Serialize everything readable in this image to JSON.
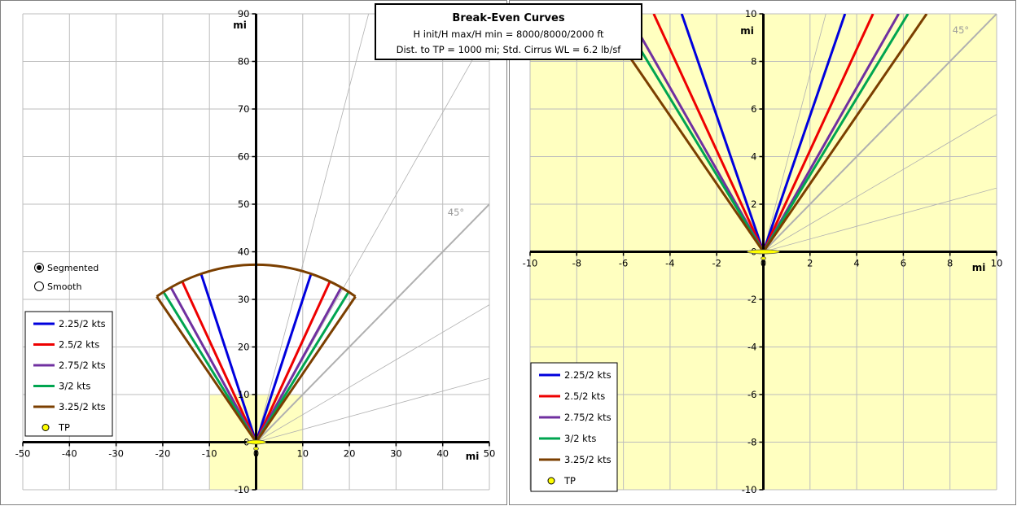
{
  "title": {
    "line1": "Break-Even Curves",
    "line2": "H init/H max/H min = 8000/8000/2000 ft",
    "line3": "Dist. to TP = 1000 mi; Std. Cirrus WL = 6.2 lb/sf"
  },
  "radio": {
    "options": [
      {
        "label": "Segmented",
        "selected": true
      },
      {
        "label": "Smooth",
        "selected": false
      }
    ]
  },
  "colors": {
    "s1": "#0000dd",
    "s2": "#ee0000",
    "s3": "#7030a0",
    "s4": "#00a550",
    "s5": "#7b3f00",
    "yellow_zone": "#ffffc0",
    "tp": "#ffff00",
    "guide": "#b0b0b0"
  },
  "legend": {
    "tp_label": "TP"
  },
  "chart_data": [
    {
      "type": "line",
      "xlabel": "mi",
      "ylabel": "mi",
      "xlim": [
        -50,
        50
      ],
      "ylim": [
        -10,
        90
      ],
      "xticks": [
        -50,
        -40,
        -30,
        -20,
        -10,
        0,
        10,
        20,
        30,
        40,
        50
      ],
      "yticks": [
        -10,
        0,
        10,
        20,
        30,
        40,
        50,
        60,
        70,
        80,
        90
      ],
      "grid": true,
      "legend_position": "bottom-left",
      "highlight_box": {
        "x": [
          -10,
          10
        ],
        "y": [
          -10,
          10
        ]
      },
      "guide_angle_label": "45°",
      "guide_lines_deg": [
        45,
        15,
        30,
        60,
        75
      ],
      "series": [
        {
          "name": "2.25/2 kts",
          "color_key": "s1",
          "points": [
            [
              -11.8,
              35.4
            ],
            [
              0,
              0
            ],
            [
              11.8,
              35.4
            ]
          ]
        },
        {
          "name": "2.5/2 kts",
          "color_key": "s2",
          "points": [
            [
              -15.8,
              33.7
            ],
            [
              0,
              0
            ],
            [
              15.8,
              33.7
            ]
          ]
        },
        {
          "name": "2.75/2 kts",
          "color_key": "s3",
          "points": [
            [
              -18.2,
              32.4
            ],
            [
              0,
              0
            ],
            [
              18.2,
              32.4
            ]
          ]
        },
        {
          "name": "3/2 kts",
          "color_key": "s4",
          "points": [
            [
              -19.8,
              31.5
            ],
            [
              0,
              0
            ],
            [
              19.8,
              31.5
            ]
          ]
        },
        {
          "name": "3.25/2 kts",
          "color_key": "s5",
          "points": [
            [
              -21.3,
              30.6
            ],
            [
              0,
              0
            ],
            [
              21.3,
              30.6
            ]
          ],
          "arc": {
            "radius": 37.3,
            "from": [
              -21.3,
              30.6
            ],
            "to": [
              21.3,
              30.6
            ]
          }
        }
      ],
      "tp": {
        "label": "TP",
        "x": 0,
        "y": 0
      }
    },
    {
      "type": "line",
      "xlabel": "mi",
      "ylabel": "mi",
      "xlim": [
        -10,
        10
      ],
      "ylim": [
        -10,
        10
      ],
      "xticks": [
        -10,
        -8,
        -6,
        -4,
        -2,
        0,
        2,
        4,
        6,
        8,
        10
      ],
      "yticks": [
        -10,
        -8,
        -6,
        -4,
        -2,
        0,
        2,
        4,
        6,
        8,
        10
      ],
      "grid": true,
      "legend_position": "bottom-left",
      "guide_angle_label": "45°",
      "guide_lines_deg": [
        45,
        15,
        30,
        60,
        75
      ],
      "series": [
        {
          "name": "2.25/2 kts",
          "color_key": "s1",
          "points": [
            [
              -3.5,
              10
            ],
            [
              0,
              0
            ],
            [
              3.5,
              10
            ]
          ]
        },
        {
          "name": "2.5/2 kts",
          "color_key": "s2",
          "points": [
            [
              -4.7,
              10
            ],
            [
              0,
              0
            ],
            [
              4.7,
              10
            ]
          ]
        },
        {
          "name": "2.75/2 kts",
          "color_key": "s3",
          "points": [
            [
              -5.8,
              10
            ],
            [
              0,
              0
            ],
            [
              5.8,
              10
            ]
          ]
        },
        {
          "name": "3/2 kts",
          "color_key": "s4",
          "points": [
            [
              -6.2,
              10
            ],
            [
              0,
              0
            ],
            [
              6.2,
              10
            ]
          ]
        },
        {
          "name": "3.25/2 kts",
          "color_key": "s5",
          "points": [
            [
              -7.0,
              10
            ],
            [
              0,
              0
            ],
            [
              7.0,
              10
            ]
          ]
        }
      ],
      "tp": {
        "label": "TP",
        "x": 0,
        "y": 0
      }
    }
  ]
}
